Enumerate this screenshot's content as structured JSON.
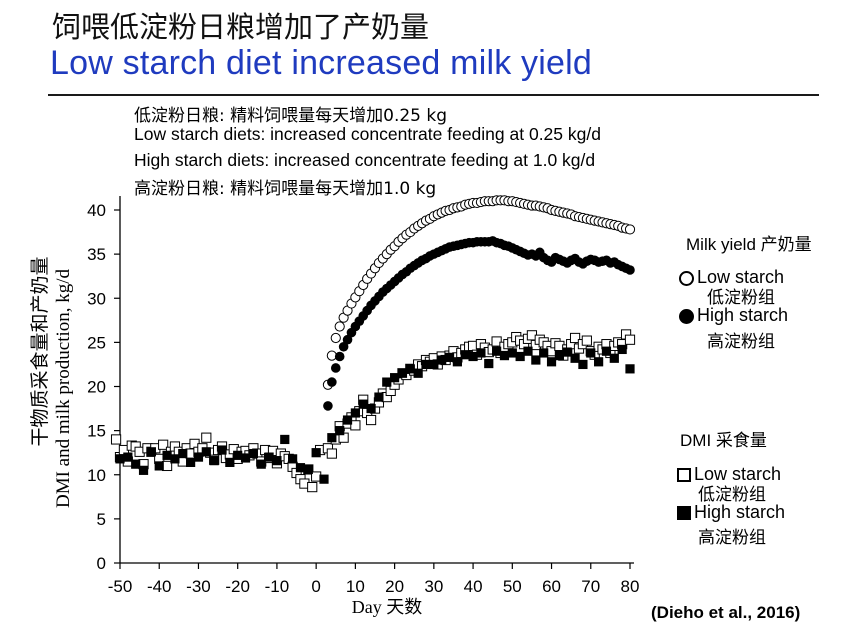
{
  "slide": {
    "title_cn": "饲喂低淀粉日粮增加了产奶量",
    "title_en": "Low starch diet increased milk yield",
    "notes": [
      "低淀粉日粮: 精料饲喂量每天增加0.25 kg",
      "Low starch diets: increased concentrate feeding at 0.25 kg/d",
      "High starch diets: increased concentrate feeding at 1.0 kg/d",
      "高淀粉日粮: 精料饲喂量每天增加1.0 kg"
    ],
    "citation": "(Dieho et al., 2016)"
  },
  "legend": {
    "milk_title": "Milk yield 产奶量",
    "milk_low": "Low starch",
    "milk_low_cn": "低淀粉组",
    "milk_high": "High starch",
    "milk_high_cn": "高淀粉组",
    "dmi_title": "DMI 采食量",
    "dmi_low": "Low starch",
    "dmi_low_cn": "低淀粉组",
    "dmi_high": "High starch",
    "dmi_high_cn": "高淀粉组"
  },
  "chart_data": {
    "type": "scatter",
    "xlabel": "Day 天数",
    "ylabel": "DMI and milk production, kg/d",
    "ylabel_cn": "干物质采食量和产奶量",
    "xlim": [
      -50,
      80
    ],
    "ylim": [
      0,
      40
    ],
    "xticks": [
      -50,
      -40,
      -30,
      -20,
      -10,
      0,
      10,
      20,
      30,
      40,
      50,
      60,
      70,
      80
    ],
    "yticks": [
      0,
      5,
      10,
      15,
      20,
      25,
      30,
      35,
      40
    ],
    "series": [
      {
        "name": "Milk yield Low starch",
        "marker": "open-circle",
        "x": [
          3,
          4,
          5,
          6,
          7,
          8,
          9,
          10,
          11,
          12,
          13,
          14,
          15,
          16,
          17,
          18,
          19,
          20,
          21,
          22,
          23,
          24,
          25,
          26,
          27,
          28,
          29,
          30,
          31,
          32,
          33,
          34,
          35,
          36,
          37,
          38,
          39,
          40,
          41,
          42,
          43,
          44,
          45,
          46,
          47,
          48,
          49,
          50,
          51,
          52,
          53,
          54,
          55,
          56,
          57,
          58,
          59,
          60,
          61,
          62,
          63,
          64,
          65,
          66,
          67,
          68,
          69,
          70,
          71,
          72,
          73,
          74,
          75,
          76,
          77,
          78,
          79,
          80
        ],
        "y": [
          20.2,
          23.5,
          25.5,
          26.8,
          27.8,
          28.6,
          29.4,
          30.1,
          30.8,
          31.5,
          32.2,
          32.8,
          33.4,
          34.0,
          34.5,
          35.0,
          35.5,
          35.9,
          36.4,
          36.8,
          37.2,
          37.5,
          37.9,
          38.2,
          38.5,
          38.8,
          39.0,
          39.3,
          39.5,
          39.7,
          39.9,
          40.0,
          40.2,
          40.3,
          40.4,
          40.6,
          40.7,
          40.8,
          40.8,
          40.9,
          41.0,
          41.0,
          41.0,
          41.1,
          41.1,
          41.1,
          41.0,
          41.0,
          40.9,
          40.8,
          40.7,
          40.6,
          40.5,
          40.5,
          40.4,
          40.3,
          40.2,
          40.0,
          39.9,
          39.8,
          39.7,
          39.6,
          39.5,
          39.3,
          39.2,
          39.1,
          39.0,
          38.9,
          38.8,
          38.7,
          38.6,
          38.5,
          38.4,
          38.3,
          38.2,
          38.0,
          37.9,
          37.8
        ]
      },
      {
        "name": "Milk yield High starch",
        "marker": "filled-circle",
        "x": [
          3,
          4,
          5,
          6,
          7,
          8,
          9,
          10,
          11,
          12,
          13,
          14,
          15,
          16,
          17,
          18,
          19,
          20,
          21,
          22,
          23,
          24,
          25,
          26,
          27,
          28,
          29,
          30,
          31,
          32,
          33,
          34,
          35,
          36,
          37,
          38,
          39,
          40,
          41,
          42,
          43,
          44,
          45,
          46,
          47,
          48,
          49,
          50,
          51,
          52,
          53,
          54,
          55,
          56,
          57,
          58,
          59,
          60,
          61,
          62,
          63,
          64,
          65,
          66,
          67,
          68,
          69,
          70,
          71,
          72,
          73,
          74,
          75,
          76,
          77,
          78,
          79,
          80
        ],
        "y": [
          17.8,
          20.5,
          22.1,
          23.4,
          24.5,
          25.3,
          26.1,
          26.8,
          27.4,
          28.0,
          28.6,
          29.2,
          29.7,
          30.2,
          30.7,
          31.1,
          31.5,
          31.9,
          32.3,
          32.7,
          33.0,
          33.4,
          33.7,
          34.0,
          34.3,
          34.5,
          34.8,
          35.0,
          35.2,
          35.4,
          35.6,
          35.8,
          35.9,
          36.0,
          36.1,
          36.2,
          36.3,
          36.3,
          36.4,
          36.4,
          36.4,
          36.4,
          36.5,
          36.3,
          36.2,
          36.0,
          35.9,
          35.7,
          35.5,
          35.3,
          35.1,
          34.9,
          35.0,
          34.8,
          35.2,
          34.6,
          34.3,
          34.1,
          34.6,
          34.4,
          34.2,
          34.0,
          34.3,
          34.5,
          34.1,
          33.9,
          34.2,
          34.4,
          34.3,
          34.1,
          34.2,
          34.3,
          34.0,
          34.1,
          33.8,
          33.6,
          33.4,
          33.2
        ]
      },
      {
        "name": "DMI Low starch",
        "marker": "open-square",
        "x": [
          -51,
          -50,
          -49,
          -48,
          -47,
          -46,
          -45,
          -44,
          -43,
          -42,
          -41,
          -40,
          -39,
          -38,
          -37,
          -36,
          -35,
          -34,
          -33,
          -32,
          -31,
          -30,
          -29,
          -28,
          -27,
          -26,
          -25,
          -24,
          -23,
          -22,
          -21,
          -20,
          -19,
          -18,
          -17,
          -16,
          -15,
          -14,
          -13,
          -12,
          -11,
          -10,
          -9,
          -8,
          -7,
          -6,
          -5,
          -4,
          -3,
          -2,
          -1,
          0,
          1,
          3,
          4,
          5,
          6,
          7,
          8,
          9,
          10,
          11,
          12,
          13,
          14,
          15,
          16,
          17,
          18,
          19,
          20,
          21,
          22,
          23,
          24,
          25,
          26,
          27,
          28,
          29,
          30,
          31,
          32,
          33,
          34,
          35,
          36,
          37,
          38,
          39,
          40,
          41,
          42,
          43,
          44,
          45,
          46,
          47,
          48,
          49,
          50,
          51,
          52,
          53,
          54,
          55,
          56,
          57,
          58,
          59,
          60,
          61,
          62,
          63,
          64,
          65,
          66,
          67,
          68,
          69,
          70,
          71,
          72,
          73,
          74,
          75,
          76,
          77,
          78,
          79,
          80
        ],
        "y": [
          14.0,
          12.0,
          12.8,
          11.5,
          13.3,
          13.2,
          12.6,
          11.2,
          13.0,
          12.6,
          13.0,
          11.8,
          13.4,
          11.0,
          12.6,
          13.2,
          12.6,
          11.5,
          13.0,
          12.4,
          13.5,
          12.6,
          13.0,
          14.2,
          12.5,
          11.7,
          12.8,
          13.2,
          11.9,
          12.3,
          12.9,
          11.8,
          12.6,
          12.7,
          12.2,
          13.0,
          12.4,
          11.5,
          12.8,
          11.9,
          12.7,
          11.3,
          12.4,
          12.1,
          11.8,
          10.9,
          10.2,
          9.5,
          9.0,
          10.6,
          8.6,
          9.8,
          12.8,
          13.0,
          12.4,
          14.0,
          15.5,
          14.2,
          15.8,
          16.5,
          15.6,
          17.2,
          18.5,
          17.0,
          16.2,
          17.5,
          18.2,
          19.2,
          18.8,
          19.5,
          20.2,
          20.8,
          21.5,
          21.3,
          22.0,
          21.8,
          22.5,
          22.3,
          23.0,
          22.8,
          23.2,
          22.5,
          23.4,
          23.0,
          23.5,
          24.0,
          23.3,
          23.8,
          24.2,
          24.5,
          24.6,
          23.6,
          24.8,
          24.4,
          23.9,
          24.2,
          25.1,
          23.8,
          24.5,
          24.8,
          25.0,
          25.6,
          25.2,
          24.8,
          25.4,
          25.8,
          24.7,
          25.3,
          25.0,
          24.6,
          24.0,
          24.9,
          24.6,
          23.5,
          24.2,
          24.8,
          25.5,
          24.3,
          24.8,
          25.2,
          24.0,
          23.6,
          24.5,
          24.2,
          24.8,
          23.8,
          24.6,
          25.0,
          24.8,
          25.9,
          25.3
        ]
      },
      {
        "name": "DMI High starch",
        "marker": "filled-square",
        "x": [
          -50,
          -48,
          -46,
          -44,
          -42,
          -40,
          -38,
          -36,
          -34,
          -32,
          -30,
          -28,
          -26,
          -24,
          -22,
          -20,
          -18,
          -16,
          -14,
          -12,
          -10,
          -8,
          -6,
          -4,
          -2,
          0,
          2,
          4,
          6,
          8,
          10,
          12,
          14,
          16,
          18,
          20,
          22,
          24,
          26,
          28,
          30,
          32,
          34,
          36,
          38,
          40,
          42,
          44,
          46,
          48,
          50,
          52,
          54,
          56,
          58,
          60,
          62,
          64,
          66,
          68,
          70,
          72,
          74,
          76,
          78,
          80
        ],
        "y": [
          11.8,
          12.0,
          11.2,
          10.5,
          12.6,
          11.0,
          12.2,
          11.8,
          12.4,
          11.4,
          12.0,
          12.6,
          11.6,
          12.8,
          11.4,
          12.2,
          11.9,
          12.4,
          11.2,
          12.0,
          11.6,
          14.0,
          11.8,
          10.8,
          10.6,
          12.5,
          9.5,
          14.2,
          15.0,
          16.2,
          17.0,
          18.0,
          17.5,
          18.8,
          20.5,
          21.0,
          21.5,
          22.0,
          21.5,
          22.5,
          22.5,
          23.0,
          23.3,
          22.8,
          23.6,
          23.4,
          23.8,
          22.6,
          24.0,
          23.5,
          23.8,
          23.4,
          24.0,
          23.0,
          23.8,
          22.8,
          23.5,
          23.9,
          23.2,
          22.5,
          23.8,
          22.8,
          24.0,
          23.2,
          24.2,
          22.0
        ]
      }
    ]
  }
}
